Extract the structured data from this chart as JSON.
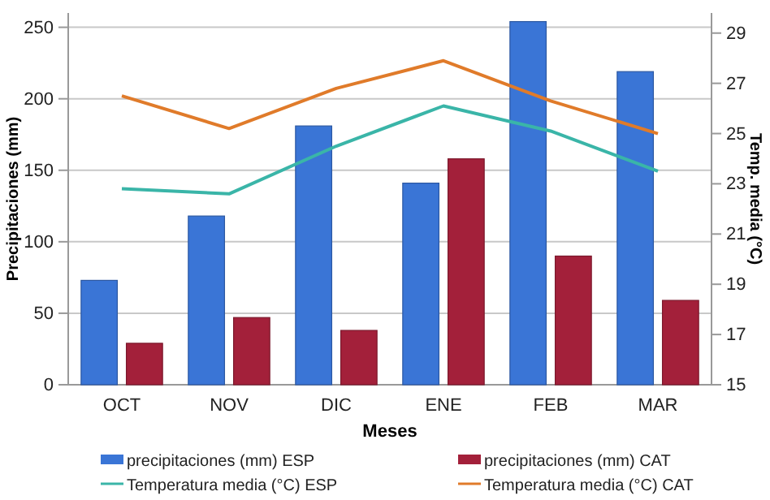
{
  "chart_data": {
    "type": "bar",
    "xlabel": "Meses",
    "ylabel": "Precipitaciones (mm)",
    "y2label": "Temp. media (°C)",
    "categories": [
      "OCT",
      "NOV",
      "DIC",
      "ENE",
      "FEB",
      "MAR"
    ],
    "series": [
      {
        "name": "precipitaciones (mm) ESP",
        "color": "#3a75d6",
        "values": [
          73,
          118,
          181,
          141,
          254,
          219
        ]
      },
      {
        "name": "precipitaciones (mm) CAT",
        "color": "#a3203a",
        "values": [
          29,
          47,
          38,
          158,
          90,
          59
        ]
      },
      {
        "name": "Temperatura media (°C) ESP",
        "type": "line",
        "axis": "y2",
        "color": "#3ab5a8",
        "values": [
          22.8,
          22.6,
          24.5,
          26.1,
          25.1,
          23.5
        ]
      },
      {
        "name": "Temperatura media (°C) CAT",
        "type": "line",
        "axis": "y2",
        "color": "#e07b2a",
        "values": [
          26.5,
          25.2,
          26.8,
          27.9,
          26.3,
          25.0
        ]
      }
    ],
    "ylim": [
      0,
      260
    ],
    "yticks": [
      0,
      50,
      100,
      150,
      200,
      250
    ],
    "y2lim": [
      15,
      29.8
    ],
    "y2ticks": [
      15,
      17,
      19,
      21,
      23,
      25,
      27,
      29
    ],
    "grid": "y",
    "legend": "bottom",
    "marker": "none"
  }
}
